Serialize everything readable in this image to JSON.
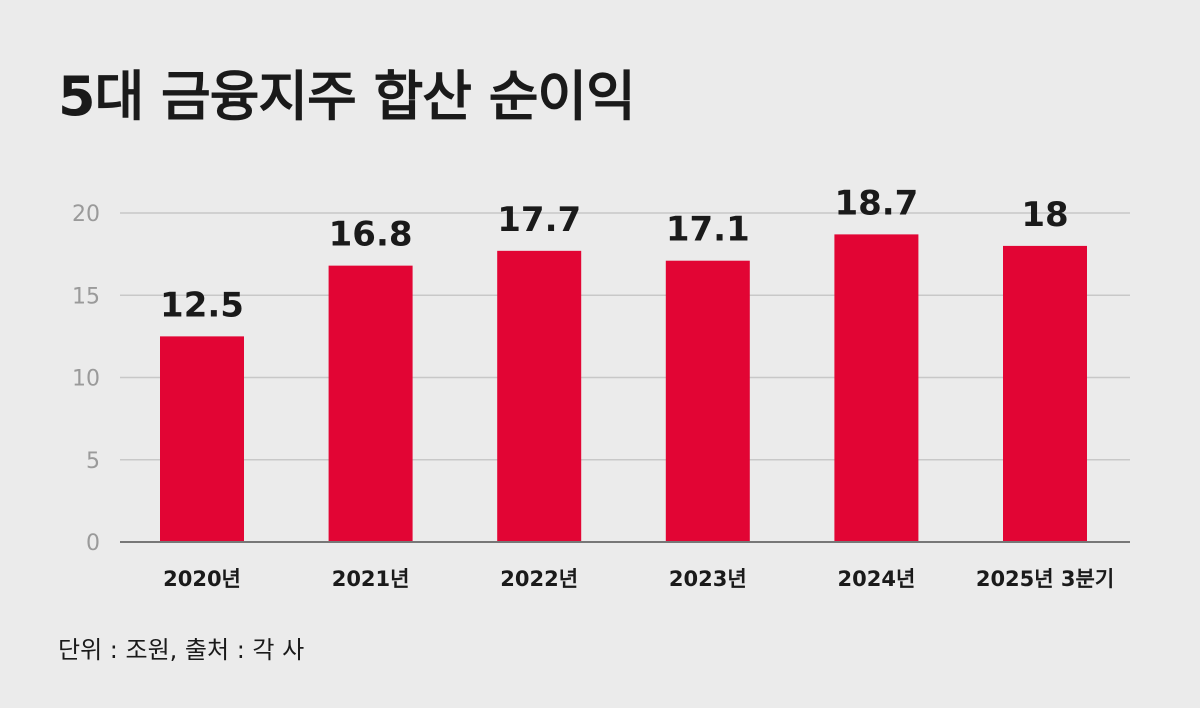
{
  "title": "5대 금융지주 합산 순이익",
  "source": "단위 : 조원, 출처 : 각 사",
  "colors": {
    "bar": "#e20534",
    "grid": "#c8c8c8",
    "axis": "#777777",
    "background": "#ebebeb"
  },
  "chart_data": {
    "type": "bar",
    "title": "5대 금융지주 합산 순이익",
    "xlabel": "",
    "ylabel": "",
    "categories": [
      "2020년",
      "2021년",
      "2022년",
      "2023년",
      "2024년",
      "2025년 3분기"
    ],
    "values": [
      12.5,
      16.8,
      17.7,
      17.1,
      18.7,
      18
    ],
    "value_labels": [
      "12.5",
      "16.8",
      "17.7",
      "17.1",
      "18.7",
      "18"
    ],
    "yticks": [
      "0",
      "5",
      "10",
      "15",
      "20"
    ],
    "ylim": [
      0,
      20
    ],
    "grid": true,
    "legend": "none"
  }
}
